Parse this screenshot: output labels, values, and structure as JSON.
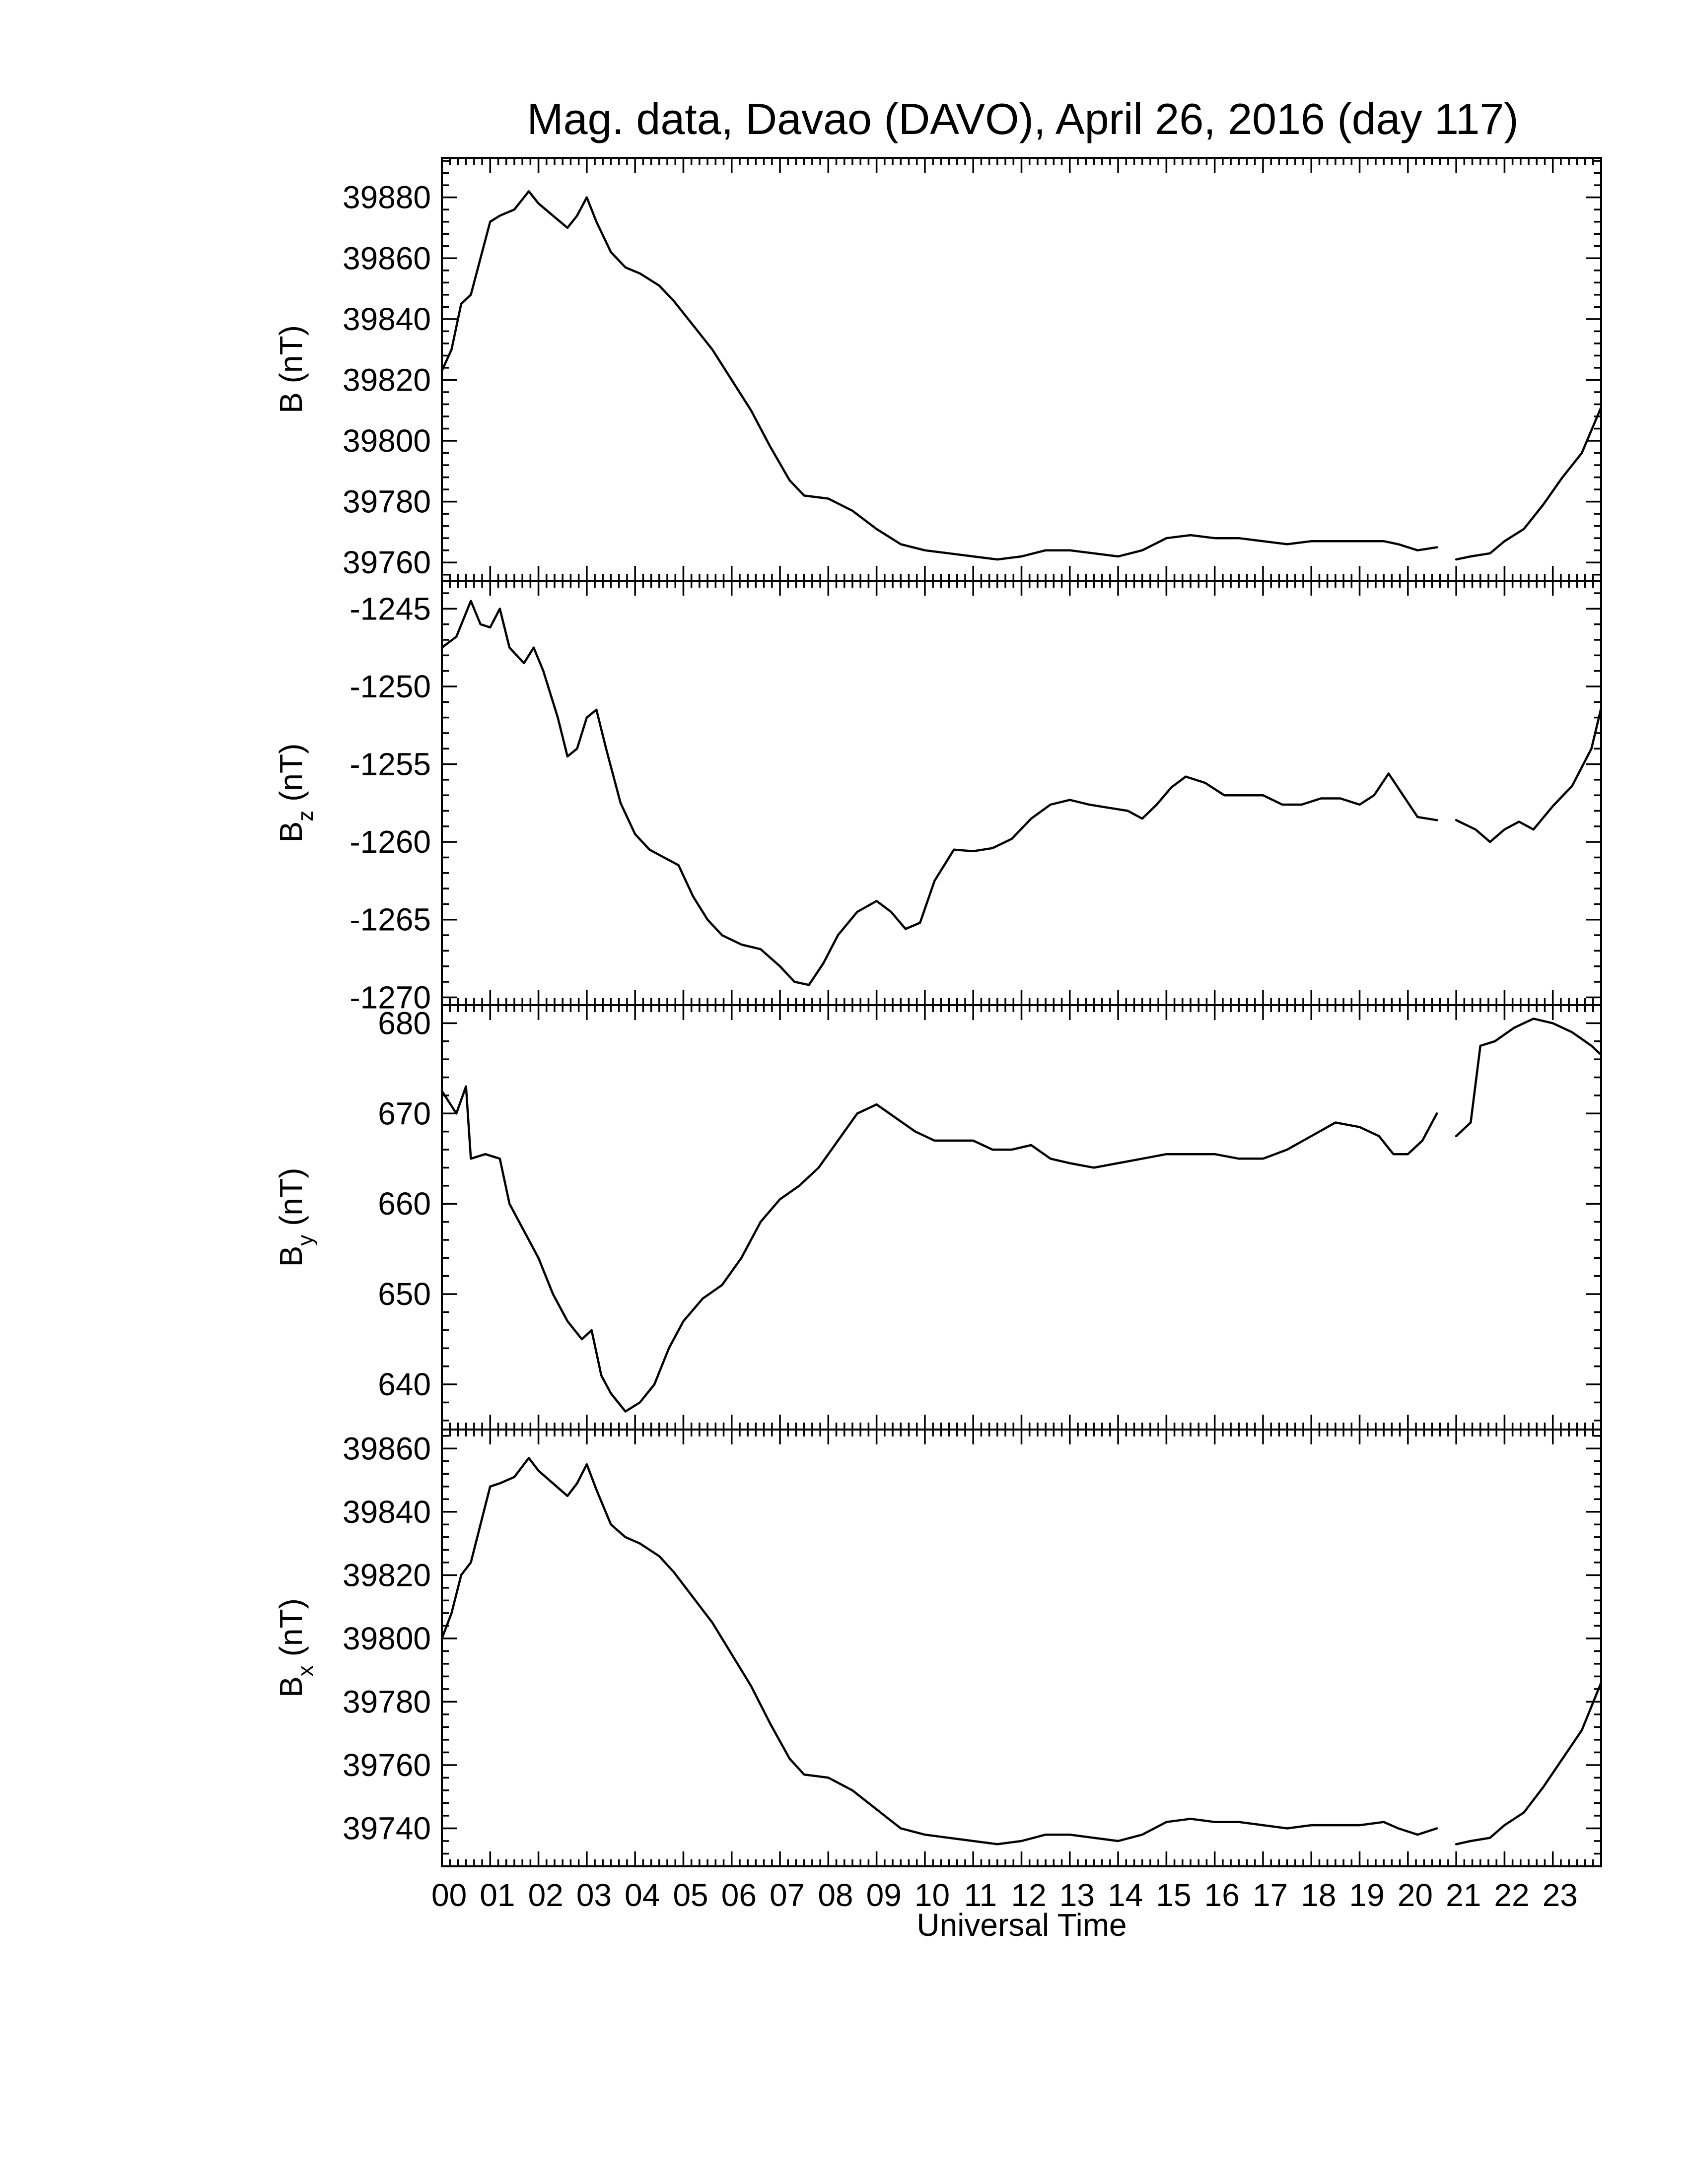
{
  "chart_data": {
    "type": "line",
    "title": "Mag. data, Davao (DAVO), April 26, 2016 (day 117)",
    "xlabel": "Universal Time",
    "x_ticks": [
      "00",
      "01",
      "02",
      "03",
      "04",
      "05",
      "06",
      "07",
      "08",
      "09",
      "10",
      "11",
      "12",
      "13",
      "14",
      "15",
      "16",
      "17",
      "18",
      "19",
      "20",
      "21",
      "22",
      "23"
    ],
    "xlim": [
      0,
      24
    ],
    "x_unit": "hours UT",
    "data_gap": [
      20.6,
      21.0
    ],
    "panels": [
      {
        "id": "B",
        "ylabel_main": "B",
        "ylabel_sub": "",
        "ylabel_unit": "(nT)",
        "ylim": [
          39754,
          39893
        ],
        "yticks": [
          39760,
          39780,
          39800,
          39820,
          39840,
          39860,
          39880
        ],
        "points": [
          [
            0,
            39823
          ],
          [
            0.2,
            39830
          ],
          [
            0.4,
            39845
          ],
          [
            0.6,
            39848
          ],
          [
            0.8,
            39860
          ],
          [
            1.0,
            39872
          ],
          [
            1.2,
            39874
          ],
          [
            1.5,
            39876
          ],
          [
            1.8,
            39882
          ],
          [
            2.0,
            39878
          ],
          [
            2.3,
            39874
          ],
          [
            2.6,
            39870
          ],
          [
            2.8,
            39874
          ],
          [
            3.0,
            39880
          ],
          [
            3.2,
            39872
          ],
          [
            3.5,
            39862
          ],
          [
            3.8,
            39857
          ],
          [
            4.1,
            39855
          ],
          [
            4.5,
            39851
          ],
          [
            4.8,
            39846
          ],
          [
            5.2,
            39838
          ],
          [
            5.6,
            39830
          ],
          [
            6.0,
            39820
          ],
          [
            6.4,
            39810
          ],
          [
            6.8,
            39798
          ],
          [
            7.2,
            39787
          ],
          [
            7.5,
            39782
          ],
          [
            8.0,
            39781
          ],
          [
            8.5,
            39777
          ],
          [
            9.0,
            39771
          ],
          [
            9.5,
            39766
          ],
          [
            10.0,
            39764
          ],
          [
            10.5,
            39763
          ],
          [
            11.0,
            39762
          ],
          [
            11.5,
            39761
          ],
          [
            12.0,
            39762
          ],
          [
            12.5,
            39764
          ],
          [
            13.0,
            39764
          ],
          [
            13.5,
            39763
          ],
          [
            14.0,
            39762
          ],
          [
            14.5,
            39764
          ],
          [
            15.0,
            39768
          ],
          [
            15.5,
            39769
          ],
          [
            16.0,
            39768
          ],
          [
            16.5,
            39768
          ],
          [
            17.0,
            39767
          ],
          [
            17.5,
            39766
          ],
          [
            18.0,
            39767
          ],
          [
            18.5,
            39767
          ],
          [
            19.0,
            39767
          ],
          [
            19.5,
            39767
          ],
          [
            19.8,
            39766
          ],
          [
            20.2,
            39764
          ],
          [
            20.6,
            39765
          ],
          [
            21.0,
            39761
          ],
          [
            21.3,
            39762
          ],
          [
            21.7,
            39763
          ],
          [
            22.0,
            39767
          ],
          [
            22.4,
            39771
          ],
          [
            22.8,
            39779
          ],
          [
            23.2,
            39788
          ],
          [
            23.6,
            39796
          ],
          [
            24.0,
            39811
          ]
        ]
      },
      {
        "id": "Bz",
        "ylabel_main": "B",
        "ylabel_sub": "z",
        "ylabel_unit": "(nT)",
        "ylim": [
          -1270.5,
          -1243.2
        ],
        "yticks": [
          -1245,
          -1250,
          -1255,
          -1260,
          -1265,
          -1270
        ],
        "points": [
          [
            0,
            -1247.5
          ],
          [
            0.3,
            -1246.8
          ],
          [
            0.6,
            -1244.5
          ],
          [
            0.8,
            -1246
          ],
          [
            1.0,
            -1246.2
          ],
          [
            1.2,
            -1245
          ],
          [
            1.4,
            -1247.5
          ],
          [
            1.7,
            -1248.5
          ],
          [
            1.9,
            -1247.5
          ],
          [
            2.1,
            -1249
          ],
          [
            2.4,
            -1252
          ],
          [
            2.6,
            -1254.5
          ],
          [
            2.8,
            -1254
          ],
          [
            3.0,
            -1252
          ],
          [
            3.2,
            -1251.5
          ],
          [
            3.4,
            -1254
          ],
          [
            3.7,
            -1257.5
          ],
          [
            4.0,
            -1259.5
          ],
          [
            4.3,
            -1260.5
          ],
          [
            4.6,
            -1261
          ],
          [
            4.9,
            -1261.5
          ],
          [
            5.2,
            -1263.5
          ],
          [
            5.5,
            -1265
          ],
          [
            5.8,
            -1266
          ],
          [
            6.2,
            -1266.6
          ],
          [
            6.6,
            -1266.9
          ],
          [
            7.0,
            -1268
          ],
          [
            7.3,
            -1269
          ],
          [
            7.6,
            -1269.2
          ],
          [
            7.9,
            -1267.8
          ],
          [
            8.2,
            -1266
          ],
          [
            8.6,
            -1264.5
          ],
          [
            9.0,
            -1263.8
          ],
          [
            9.3,
            -1264.5
          ],
          [
            9.6,
            -1265.6
          ],
          [
            9.9,
            -1265.2
          ],
          [
            10.2,
            -1262.5
          ],
          [
            10.6,
            -1260.5
          ],
          [
            11.0,
            -1260.6
          ],
          [
            11.4,
            -1260.4
          ],
          [
            11.8,
            -1259.8
          ],
          [
            12.2,
            -1258.5
          ],
          [
            12.6,
            -1257.6
          ],
          [
            13.0,
            -1257.3
          ],
          [
            13.4,
            -1257.6
          ],
          [
            13.8,
            -1257.8
          ],
          [
            14.2,
            -1258
          ],
          [
            14.5,
            -1258.5
          ],
          [
            14.8,
            -1257.6
          ],
          [
            15.1,
            -1256.5
          ],
          [
            15.4,
            -1255.8
          ],
          [
            15.8,
            -1256.2
          ],
          [
            16.2,
            -1257
          ],
          [
            16.6,
            -1257
          ],
          [
            17.0,
            -1257
          ],
          [
            17.4,
            -1257.6
          ],
          [
            17.8,
            -1257.6
          ],
          [
            18.2,
            -1257.2
          ],
          [
            18.6,
            -1257.2
          ],
          [
            19.0,
            -1257.6
          ],
          [
            19.3,
            -1257
          ],
          [
            19.6,
            -1255.6
          ],
          [
            19.9,
            -1257
          ],
          [
            20.2,
            -1258.4
          ],
          [
            20.6,
            -1258.6
          ],
          [
            21.0,
            -1258.6
          ],
          [
            21.4,
            -1259.2
          ],
          [
            21.7,
            -1260
          ],
          [
            22.0,
            -1259.2
          ],
          [
            22.3,
            -1258.7
          ],
          [
            22.6,
            -1259.2
          ],
          [
            23.0,
            -1257.7
          ],
          [
            23.4,
            -1256.4
          ],
          [
            23.8,
            -1254
          ],
          [
            24.0,
            -1251.4
          ]
        ]
      },
      {
        "id": "By",
        "ylabel_main": "B",
        "ylabel_sub": "y",
        "ylabel_unit": "(nT)",
        "ylim": [
          635,
          682
        ],
        "yticks": [
          640,
          650,
          660,
          670,
          680
        ],
        "points": [
          [
            0,
            672.5
          ],
          [
            0.3,
            670
          ],
          [
            0.5,
            673
          ],
          [
            0.6,
            665
          ],
          [
            0.9,
            665.5
          ],
          [
            1.2,
            665
          ],
          [
            1.4,
            660
          ],
          [
            1.7,
            657
          ],
          [
            2.0,
            654
          ],
          [
            2.3,
            650
          ],
          [
            2.6,
            647
          ],
          [
            2.9,
            645
          ],
          [
            3.1,
            646
          ],
          [
            3.3,
            641
          ],
          [
            3.5,
            639
          ],
          [
            3.8,
            637
          ],
          [
            4.1,
            638
          ],
          [
            4.4,
            640
          ],
          [
            4.7,
            644
          ],
          [
            5.0,
            647
          ],
          [
            5.4,
            649.5
          ],
          [
            5.8,
            651
          ],
          [
            6.2,
            654
          ],
          [
            6.6,
            658
          ],
          [
            7.0,
            660.5
          ],
          [
            7.4,
            662
          ],
          [
            7.8,
            664
          ],
          [
            8.2,
            667
          ],
          [
            8.6,
            670
          ],
          [
            9.0,
            671
          ],
          [
            9.4,
            669.5
          ],
          [
            9.8,
            668
          ],
          [
            10.2,
            667
          ],
          [
            10.6,
            667
          ],
          [
            11.0,
            667
          ],
          [
            11.4,
            666
          ],
          [
            11.8,
            666
          ],
          [
            12.2,
            666.5
          ],
          [
            12.6,
            665
          ],
          [
            13.0,
            664.5
          ],
          [
            13.5,
            664
          ],
          [
            14.0,
            664.5
          ],
          [
            14.5,
            665
          ],
          [
            15.0,
            665.5
          ],
          [
            15.5,
            665.5
          ],
          [
            16.0,
            665.5
          ],
          [
            16.5,
            665
          ],
          [
            17.0,
            665
          ],
          [
            17.5,
            666
          ],
          [
            18.0,
            667.5
          ],
          [
            18.5,
            669
          ],
          [
            19.0,
            668.5
          ],
          [
            19.4,
            667.5
          ],
          [
            19.7,
            665.5
          ],
          [
            20.0,
            665.5
          ],
          [
            20.3,
            667
          ],
          [
            20.6,
            670
          ],
          [
            21.0,
            667.5
          ],
          [
            21.3,
            669
          ],
          [
            21.5,
            677.5
          ],
          [
            21.8,
            678
          ],
          [
            22.2,
            679.5
          ],
          [
            22.6,
            680.5
          ],
          [
            23.0,
            680
          ],
          [
            23.4,
            679
          ],
          [
            23.8,
            677.5
          ],
          [
            24.0,
            676.5
          ]
        ]
      },
      {
        "id": "Bx",
        "ylabel_main": "B",
        "ylabel_sub": "x",
        "ylabel_unit": "(nT)",
        "ylim": [
          39728,
          39866
        ],
        "yticks": [
          39740,
          39760,
          39780,
          39800,
          39820,
          39840,
          39860
        ],
        "points": [
          [
            0,
            39800
          ],
          [
            0.2,
            39808
          ],
          [
            0.4,
            39820
          ],
          [
            0.6,
            39824
          ],
          [
            0.8,
            39836
          ],
          [
            1.0,
            39848
          ],
          [
            1.2,
            39849
          ],
          [
            1.5,
            39851
          ],
          [
            1.8,
            39857
          ],
          [
            2.0,
            39853
          ],
          [
            2.3,
            39849
          ],
          [
            2.6,
            39845
          ],
          [
            2.8,
            39849
          ],
          [
            3.0,
            39855
          ],
          [
            3.2,
            39847
          ],
          [
            3.5,
            39836
          ],
          [
            3.8,
            39832
          ],
          [
            4.1,
            39830
          ],
          [
            4.5,
            39826
          ],
          [
            4.8,
            39821
          ],
          [
            5.2,
            39813
          ],
          [
            5.6,
            39805
          ],
          [
            6.0,
            39795
          ],
          [
            6.4,
            39785
          ],
          [
            6.8,
            39773
          ],
          [
            7.2,
            39762
          ],
          [
            7.5,
            39757
          ],
          [
            8.0,
            39756
          ],
          [
            8.5,
            39752
          ],
          [
            9.0,
            39746
          ],
          [
            9.5,
            39740
          ],
          [
            10.0,
            39738
          ],
          [
            10.5,
            39737
          ],
          [
            11.0,
            39736
          ],
          [
            11.5,
            39735
          ],
          [
            12.0,
            39736
          ],
          [
            12.5,
            39738
          ],
          [
            13.0,
            39738
          ],
          [
            13.5,
            39737
          ],
          [
            14.0,
            39736
          ],
          [
            14.5,
            39738
          ],
          [
            15.0,
            39742
          ],
          [
            15.5,
            39743
          ],
          [
            16.0,
            39742
          ],
          [
            16.5,
            39742
          ],
          [
            17.0,
            39741
          ],
          [
            17.5,
            39740
          ],
          [
            18.0,
            39741
          ],
          [
            18.5,
            39741
          ],
          [
            19.0,
            39741
          ],
          [
            19.5,
            39742
          ],
          [
            19.8,
            39740
          ],
          [
            20.2,
            39738
          ],
          [
            20.6,
            39740
          ],
          [
            21.0,
            39735
          ],
          [
            21.3,
            39736
          ],
          [
            21.7,
            39737
          ],
          [
            22.0,
            39741
          ],
          [
            22.4,
            39745
          ],
          [
            22.8,
            39753
          ],
          [
            23.2,
            39762
          ],
          [
            23.6,
            39771
          ],
          [
            24.0,
            39786
          ]
        ]
      }
    ]
  }
}
